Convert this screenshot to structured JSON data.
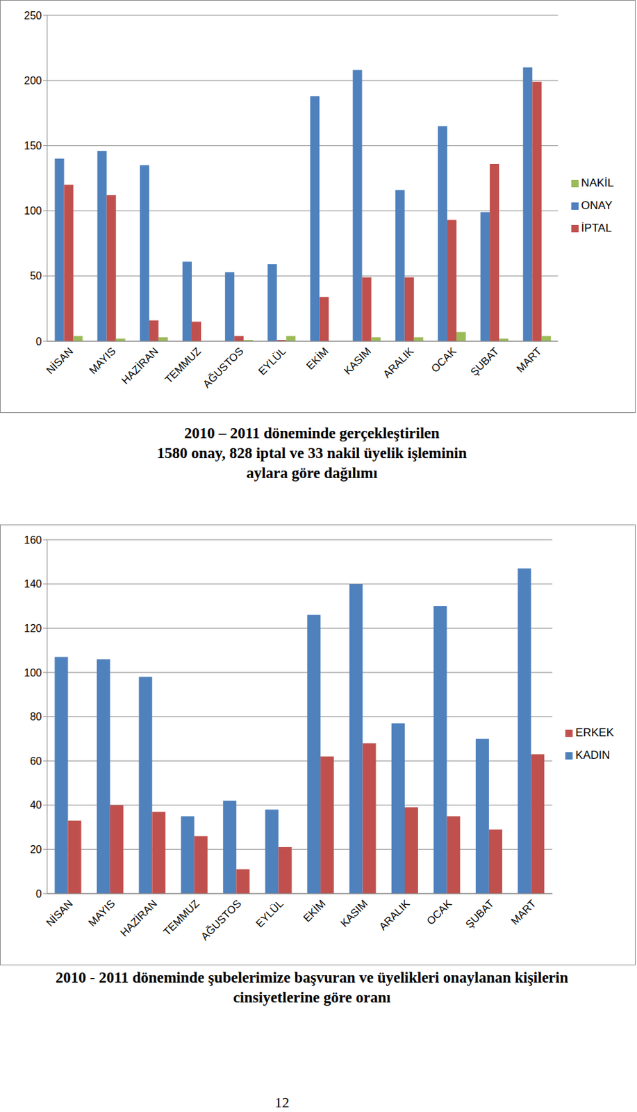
{
  "chart_data": [
    {
      "type": "bar",
      "title": "2010 – 2011 döneminde gerçekleştirilen\n1580 onay, 828 iptal ve 33 nakil üyelik işleminin\naylara göre dağılımı",
      "categories": [
        "NİSAN",
        "MAYIS",
        "HAZİRAN",
        "TEMMUZ",
        "AĞUSTOS",
        "EYLÜL",
        "EKİM",
        "KASIM",
        "ARALIK",
        "OCAK",
        "ŞUBAT",
        "MART"
      ],
      "series": [
        {
          "name": "ONAY",
          "color": "#4F81BD",
          "values": [
            140,
            146,
            135,
            61,
            53,
            59,
            188,
            208,
            116,
            165,
            99,
            210
          ]
        },
        {
          "name": "İPTAL",
          "color": "#C0504D",
          "values": [
            120,
            112,
            16,
            15,
            4,
            1,
            34,
            49,
            49,
            93,
            136,
            199
          ]
        },
        {
          "name": "NAKİL",
          "color": "#9BBB59",
          "values": [
            4,
            2,
            3,
            0,
            1,
            4,
            0,
            3,
            3,
            7,
            2,
            4
          ]
        }
      ],
      "ylim": [
        0,
        250
      ],
      "yticks": [
        0,
        50,
        100,
        150,
        200,
        250
      ],
      "grid": true,
      "legend": "right"
    },
    {
      "type": "bar",
      "title": "2010 - 2011 döneminde şubelerimize başvuran ve üyelikleri onaylanan kişilerin\ncinsiyetlerine göre oranı",
      "categories": [
        "NİSAN",
        "MAYIS",
        "HAZİRAN",
        "TEMMUZ",
        "AĞUSTOS",
        "EYLÜL",
        "EKİM",
        "KASIM",
        "ARALIK",
        "OCAK",
        "ŞUBAT",
        "MART"
      ],
      "series": [
        {
          "name": "KADIN",
          "color": "#4F81BD",
          "values": [
            107,
            106,
            98,
            35,
            42,
            38,
            126,
            140,
            77,
            130,
            70,
            147
          ]
        },
        {
          "name": "ERKEK",
          "color": "#C0504D",
          "values": [
            33,
            40,
            37,
            26,
            11,
            21,
            62,
            68,
            39,
            35,
            29,
            63
          ]
        }
      ],
      "ylim": [
        0,
        160
      ],
      "yticks": [
        0,
        20,
        40,
        60,
        80,
        100,
        120,
        140,
        160
      ],
      "grid": true,
      "legend": "right"
    }
  ],
  "page_number": "12"
}
